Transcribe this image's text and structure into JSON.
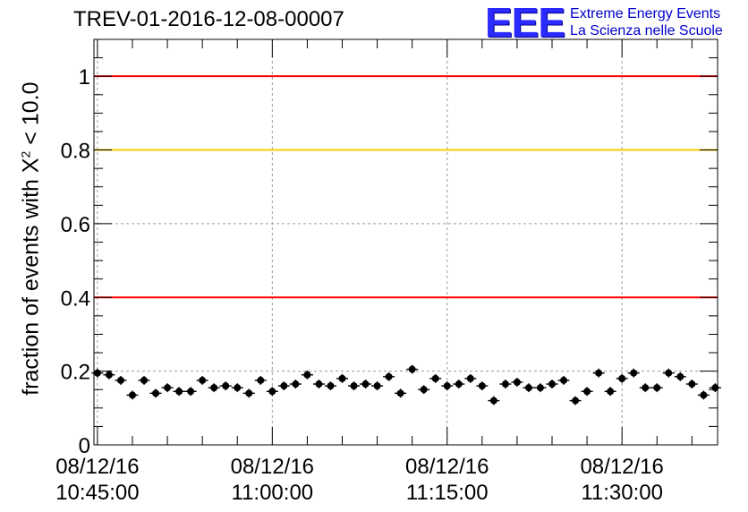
{
  "title": "TREV-01-2016-12-08-00007",
  "logo": {
    "mark": "EEE",
    "line1": "Extreme Energy Events",
    "line2": "La Scienza nelle Scuole",
    "color": "#2a2aff"
  },
  "chart_data": {
    "type": "scatter",
    "title": "TREV-01-2016-12-08-00007",
    "ylabel_prefix": "fraction of events with X",
    "ylabel_sup": "2",
    "ylabel_suffix": " < 10.0",
    "xlabel": "",
    "x_unit": "minutes",
    "x_ticks": [
      {
        "x": 0,
        "date": "08/12/16",
        "time": "10:45:00"
      },
      {
        "x": 15,
        "date": "08/12/16",
        "time": "11:00:00"
      },
      {
        "x": 30,
        "date": "08/12/16",
        "time": "11:15:00"
      },
      {
        "x": 45,
        "date": "08/12/16",
        "time": "11:30:00"
      }
    ],
    "xlim": [
      -0.3,
      53.2
    ],
    "ylim": [
      0,
      1.1
    ],
    "y_ticks": [
      "0",
      "0.2",
      "0.4",
      "0.6",
      "0.8",
      "1"
    ],
    "grid": true,
    "reference_lines": [
      {
        "y": 1.0,
        "color": "#ff0000"
      },
      {
        "y": 0.8,
        "color": "#ffcc00"
      },
      {
        "y": 0.4,
        "color": "#ff0000"
      }
    ],
    "x_step": 1,
    "y_error": 0.012,
    "values": [
      0.195,
      0.19,
      0.175,
      0.135,
      0.175,
      0.14,
      0.155,
      0.145,
      0.145,
      0.175,
      0.155,
      0.16,
      0.155,
      0.14,
      0.175,
      0.145,
      0.16,
      0.165,
      0.19,
      0.165,
      0.16,
      0.18,
      0.16,
      0.165,
      0.16,
      0.185,
      0.14,
      0.205,
      0.15,
      0.18,
      0.16,
      0.165,
      0.18,
      0.16,
      0.12,
      0.165,
      0.17,
      0.155,
      0.155,
      0.165,
      0.175,
      0.12,
      0.145,
      0.195,
      0.145,
      0.18,
      0.195,
      0.155,
      0.155,
      0.195,
      0.185,
      0.165,
      0.135,
      0.155
    ]
  }
}
